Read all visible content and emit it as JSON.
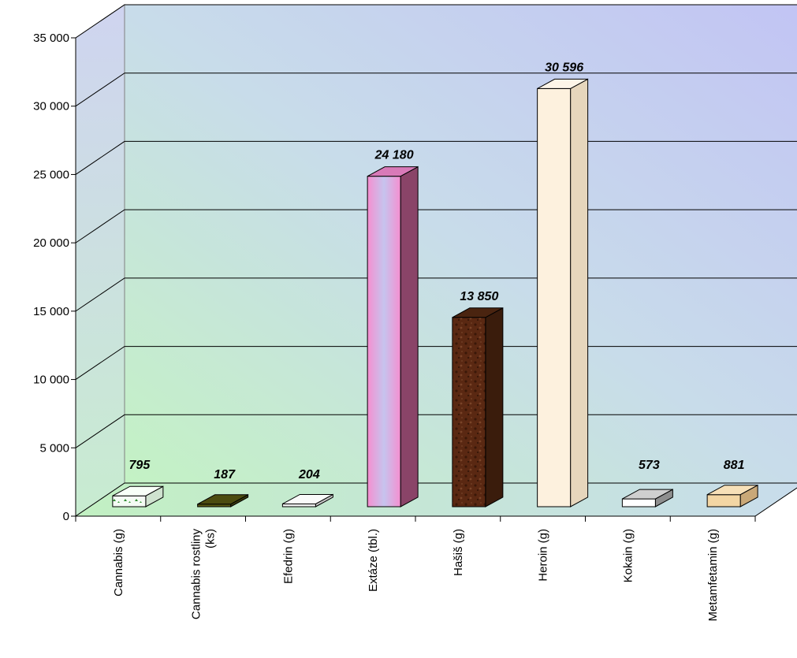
{
  "chart_data": {
    "type": "bar",
    "categories": [
      "Cannabis (g)",
      "Cannabis rostliny (ks)",
      "Efedrin (g)",
      "Extáze (tbl.)",
      "Hašiš (g)",
      "Heroin (g)",
      "Kokain (g)",
      "Metamfetamin (g)"
    ],
    "category_lines": [
      [
        "Cannabis (g)"
      ],
      [
        "Cannabis rostliny",
        "(ks)"
      ],
      [
        "Efedrin (g)"
      ],
      [
        "Extáze (tbl.)"
      ],
      [
        "Hašiš (g)"
      ],
      [
        "Heroin (g)"
      ],
      [
        "Kokain (g)"
      ],
      [
        "Metamfetamin (g)"
      ]
    ],
    "values": [
      795,
      187,
      204,
      24180,
      13850,
      30596,
      573,
      881
    ],
    "value_labels": [
      "795",
      "187",
      "204",
      "24 180",
      "13 850",
      "30 596",
      "573",
      "881"
    ],
    "ylim": [
      0,
      35000
    ],
    "y_ticks": [
      0,
      5000,
      10000,
      15000,
      20000,
      25000,
      30000,
      35000
    ],
    "y_tick_labels": [
      "0",
      "5 000",
      "10 000",
      "15 000",
      "20 000",
      "25 000",
      "30 000",
      "35 000"
    ],
    "grid": true,
    "three_d": true,
    "title": "",
    "xlabel": "",
    "ylabel": "",
    "bar_colors": [
      {
        "front": "#f4fbf4",
        "top": "#f8fff8",
        "side": "#cfe2cf"
      },
      {
        "front": "#5b5b14",
        "top": "#4c4c10",
        "side": "#3a3a0c"
      },
      {
        "front": "#f0f0f0",
        "top": "#fafafa",
        "side": "#c8c8c8"
      },
      {
        "front": "#f09cd6",
        "top": "#d87ab8",
        "side": "#8a4468"
      },
      {
        "front": "#5a2a14",
        "top": "#4a2410",
        "side": "#3a1c0c"
      },
      {
        "front": "#fdf1de",
        "top": "#fdf5e8",
        "side": "#e6d6bc"
      },
      {
        "front": "#ffffff",
        "top": "#cfcfcf",
        "side": "#8e8e8e"
      },
      {
        "front": "#f3d6a4",
        "top": "#f7e0b8",
        "side": "#c9a878"
      }
    ]
  }
}
